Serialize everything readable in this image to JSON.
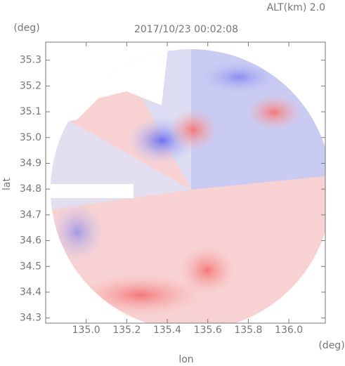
{
  "chart_data": {
    "type": "radar",
    "title": "2017/10/23 00:02:08",
    "annotation": "ALT(km) 2.0",
    "xlabel": "lon",
    "ylabel": "lat",
    "xunit": "(deg)",
    "yunit": "(deg)",
    "xlim": [
      134.8,
      136.18
    ],
    "ylim": [
      34.28,
      35.37
    ],
    "xticks": [
      {
        "value": 135,
        "label": "135.0"
      },
      135.2,
      135.4,
      135.6,
      135.8,
      {
        "value": 136,
        "label": "136.0"
      }
    ],
    "yticks": [
      34.3,
      34.4,
      34.5,
      34.6,
      34.7,
      34.8,
      34.9,
      {
        "value": 35,
        "label": "35.0"
      },
      35.1,
      35.2,
      35.3
    ]
  }
}
